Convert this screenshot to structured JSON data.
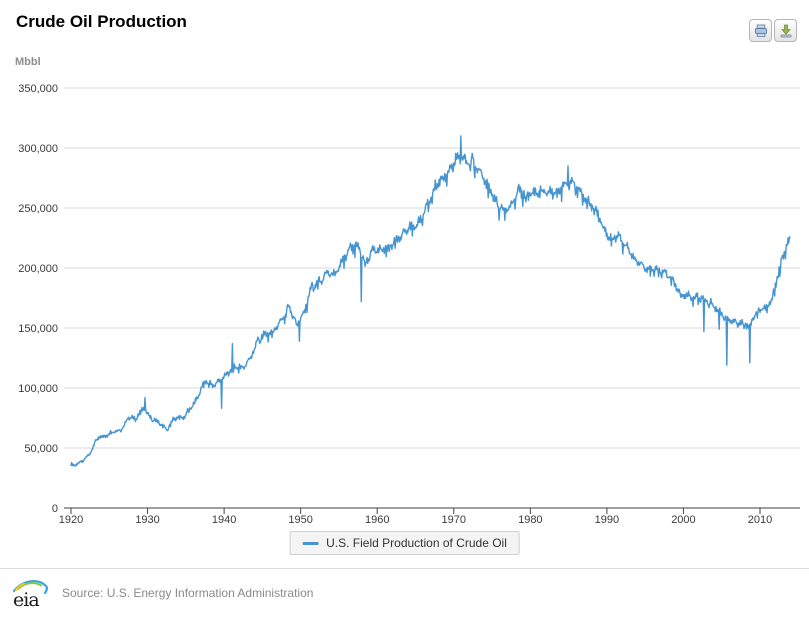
{
  "header": {
    "title": "Crude Oil Production"
  },
  "toolbar": {
    "buttons": [
      "print",
      "download"
    ]
  },
  "axis_unit_label": "Mbbl",
  "legend": {
    "items": [
      {
        "label": "U.S. Field Production of Crude Oil",
        "color": "#4694d0"
      }
    ]
  },
  "footer": {
    "logo_text": "eia",
    "source": "Source: U.S. Energy Information Administration"
  },
  "colors": {
    "series_line": "#4694d0",
    "gridline": "#d8d8d8",
    "axis": "#424242",
    "tick_text": "#3a3a3a"
  },
  "chart_data": {
    "type": "line",
    "title": "Crude Oil Production",
    "ylabel": "Mbbl",
    "resolution": "monthly",
    "xlim": [
      1920,
      2014
    ],
    "ylim": [
      0,
      350000
    ],
    "xticks": [
      1920,
      1930,
      1940,
      1950,
      1960,
      1970,
      1980,
      1990,
      2000,
      2010
    ],
    "ytick_values": [
      0,
      50000,
      100000,
      150000,
      200000,
      250000,
      300000,
      350000
    ],
    "ytick_labels": [
      "0",
      "50,000",
      "100,000",
      "150,000",
      "200,000",
      "250,000",
      "300,000",
      "350,000"
    ],
    "grid": "horizontal-only",
    "legend_position": "bottom-center",
    "series": [
      {
        "name": "U.S. Field Production of Crude Oil",
        "color": "#4694d0",
        "start_year": 1920,
        "end_x": 2013.92,
        "annual_values_mbbl": [
          36000,
          39000,
          46000,
          59000,
          60000,
          64000,
          65000,
          75000,
          75000,
          84000,
          75000,
          71000,
          65000,
          75000,
          75000,
          82000,
          92000,
          106000,
          102000,
          106000,
          113000,
          118000,
          117000,
          126000,
          141000,
          145000,
          147000,
          156000,
          168000,
          152000,
          164000,
          186000,
          189000,
          196000,
          194000,
          207000,
          217000,
          218000,
          204000,
          215000,
          214000,
          219000,
          222000,
          230000,
          235000,
          238000,
          252000,
          267000,
          275000,
          280000,
          293000,
          291000,
          289000,
          280000,
          267000,
          255000,
          248000,
          252000,
          265000,
          260000,
          263000,
          263000,
          263000,
          264000,
          270000,
          273000,
          265000,
          255000,
          250000,
          234000,
          224000,
          227000,
          219000,
          209000,
          203000,
          199000,
          198000,
          196000,
          191000,
          179000,
          177000,
          176000,
          175000,
          172000,
          165000,
          158000,
          155000,
          154000,
          152000,
          162000,
          167000,
          172000,
          198000,
          222000
        ],
        "notable_extremes": [
          {
            "x": 1929.7,
            "y": 92000
          },
          {
            "x": 1939.7,
            "y": 83000
          },
          {
            "x": 1941.1,
            "y": 137000
          },
          {
            "x": 1949.8,
            "y": 139000
          },
          {
            "x": 1957.9,
            "y": 172000
          },
          {
            "x": 1970.9,
            "y": 310000
          },
          {
            "x": 1984.9,
            "y": 285000
          },
          {
            "x": 2002.7,
            "y": 147000
          },
          {
            "x": 2004.7,
            "y": 149000
          },
          {
            "x": 2005.7,
            "y": 119000
          },
          {
            "x": 2008.7,
            "y": 121000
          }
        ]
      }
    ]
  }
}
